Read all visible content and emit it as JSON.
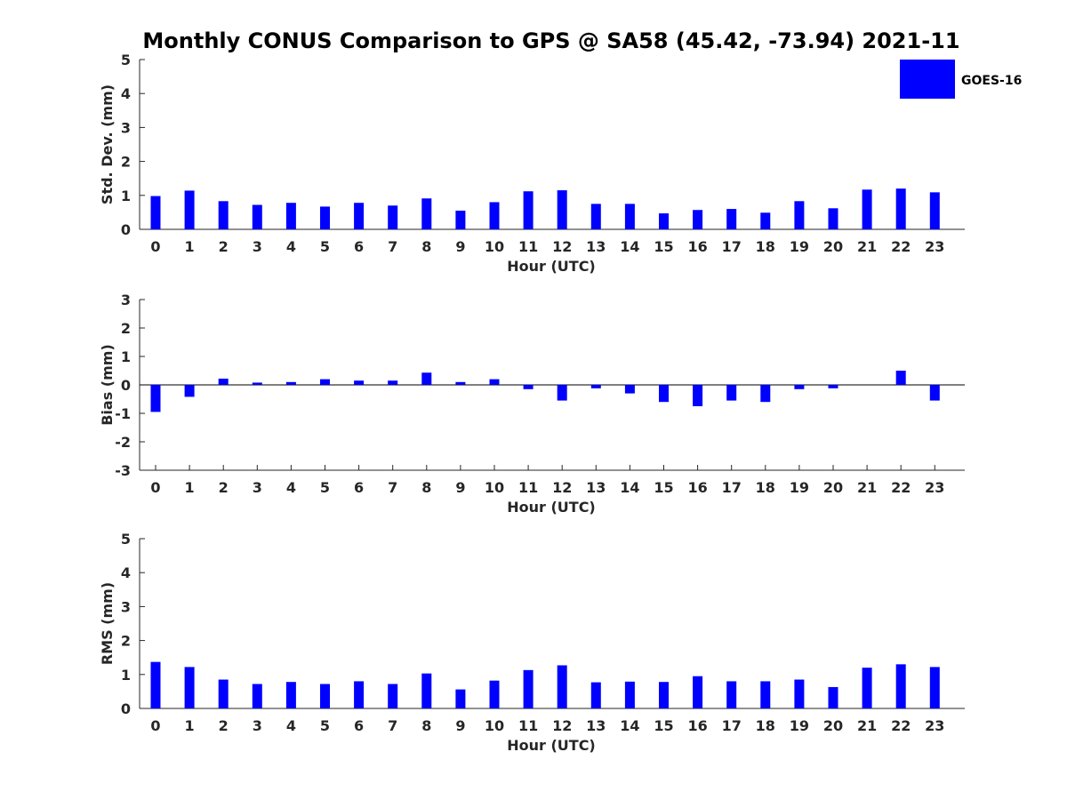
{
  "title": "Monthly CONUS Comparison to GPS @ SA58 (45.42, -73.94) 2021-11",
  "legend": {
    "label": "GOES-16",
    "color": "#0000ff",
    "placement": "top-right"
  },
  "chart_data": [
    {
      "type": "bar",
      "xlabel": "Hour (UTC)",
      "ylabel": "Std. Dev. (mm)",
      "ylim": [
        0,
        5
      ],
      "yticks": [
        "0",
        "1",
        "2",
        "3",
        "4",
        "5"
      ],
      "categories": [
        "0",
        "1",
        "2",
        "3",
        "4",
        "5",
        "6",
        "7",
        "8",
        "9",
        "10",
        "11",
        "12",
        "13",
        "14",
        "15",
        "16",
        "17",
        "18",
        "19",
        "20",
        "21",
        "22",
        "23"
      ],
      "series": [
        {
          "name": "GOES-16",
          "color": "#0000ff",
          "values": [
            0.98,
            1.14,
            0.83,
            0.72,
            0.78,
            0.67,
            0.78,
            0.7,
            0.91,
            0.55,
            0.8,
            1.12,
            1.15,
            0.75,
            0.75,
            0.47,
            0.57,
            0.6,
            0.49,
            0.83,
            0.62,
            1.17,
            1.2,
            1.09
          ]
        }
      ]
    },
    {
      "type": "bar",
      "xlabel": "Hour (UTC)",
      "ylabel": "Bias (mm)",
      "ylim": [
        -3,
        3
      ],
      "yticks": [
        "-3",
        "-2",
        "-1",
        "0",
        "1",
        "2",
        "3"
      ],
      "zero_line": true,
      "categories": [
        "0",
        "1",
        "2",
        "3",
        "4",
        "5",
        "6",
        "7",
        "8",
        "9",
        "10",
        "11",
        "12",
        "13",
        "14",
        "15",
        "16",
        "17",
        "18",
        "19",
        "20",
        "21",
        "22",
        "23"
      ],
      "series": [
        {
          "name": "GOES-16",
          "color": "#0000ff",
          "values": [
            -0.95,
            -0.42,
            0.22,
            0.08,
            0.1,
            0.2,
            0.15,
            0.15,
            0.43,
            0.1,
            0.2,
            -0.15,
            -0.55,
            -0.12,
            -0.3,
            -0.6,
            -0.75,
            -0.55,
            -0.6,
            -0.15,
            -0.12,
            0.0,
            0.5,
            -0.55
          ]
        }
      ]
    },
    {
      "type": "bar",
      "xlabel": "Hour (UTC)",
      "ylabel": "RMS (mm)",
      "ylim": [
        0,
        5
      ],
      "yticks": [
        "0",
        "1",
        "2",
        "3",
        "4",
        "5"
      ],
      "categories": [
        "0",
        "1",
        "2",
        "3",
        "4",
        "5",
        "6",
        "7",
        "8",
        "9",
        "10",
        "11",
        "12",
        "13",
        "14",
        "15",
        "16",
        "17",
        "18",
        "19",
        "20",
        "21",
        "22",
        "23"
      ],
      "series": [
        {
          "name": "GOES-16",
          "color": "#0000ff",
          "values": [
            1.37,
            1.22,
            0.85,
            0.72,
            0.78,
            0.72,
            0.8,
            0.72,
            1.03,
            0.56,
            0.82,
            1.13,
            1.27,
            0.77,
            0.79,
            0.78,
            0.95,
            0.8,
            0.8,
            0.85,
            0.63,
            1.2,
            1.3,
            1.22
          ]
        }
      ]
    }
  ]
}
